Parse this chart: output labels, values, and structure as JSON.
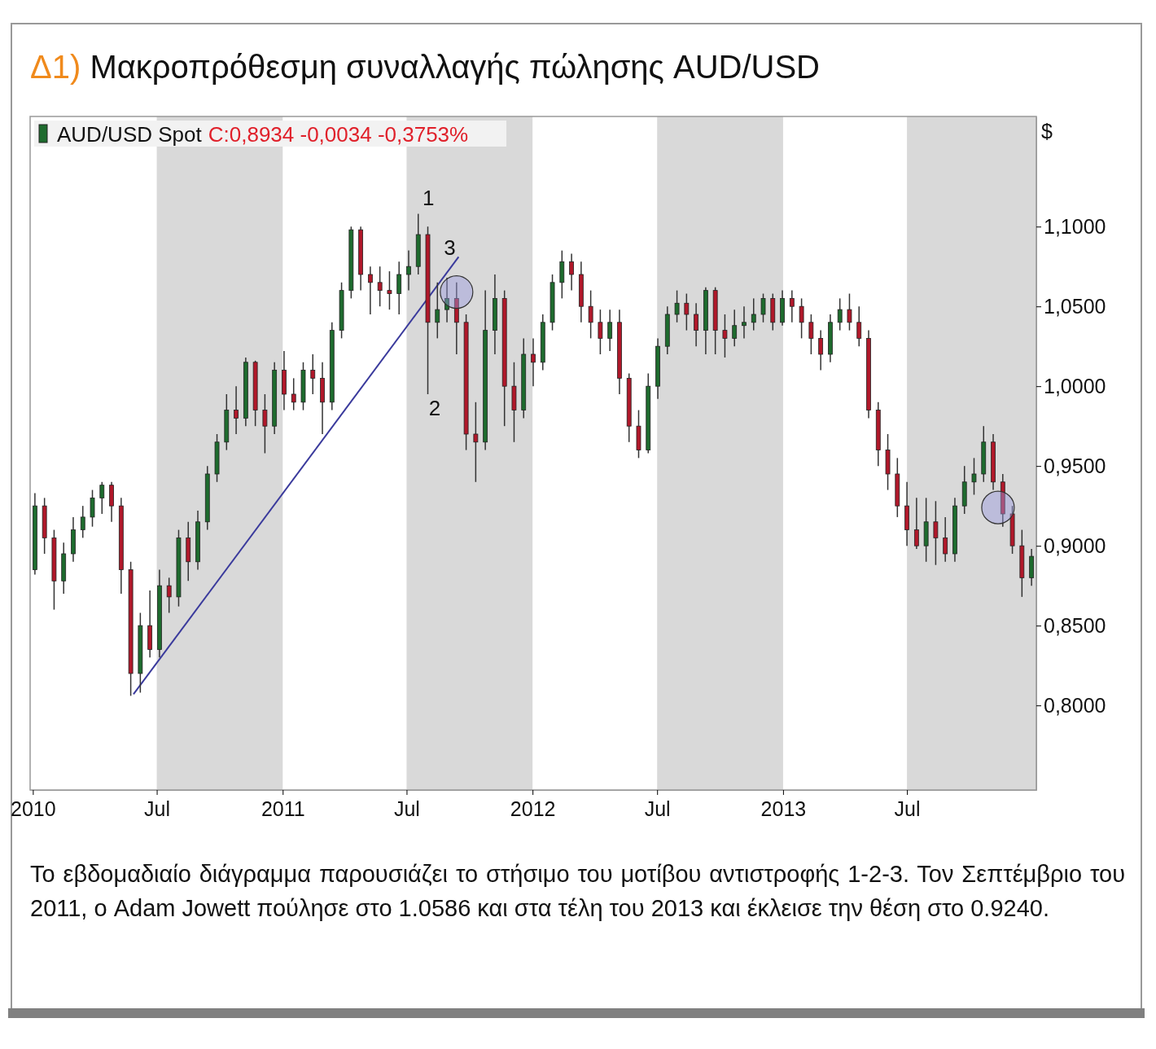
{
  "chart_data": {
    "type": "candlestick",
    "title": "Δ1) Μακροπρόθεσμη συναλλαγής πώλησης AUD/USD",
    "ylabel": "$",
    "x": [
      "2010-01-04",
      "2010-01-18",
      "2010-02-01",
      "2010-02-15",
      "2010-03-01",
      "2010-03-15",
      "2010-03-29",
      "2010-04-12",
      "2010-04-26",
      "2010-05-10",
      "2010-05-24",
      "2010-06-07",
      "2010-06-21",
      "2010-07-05",
      "2010-07-19",
      "2010-08-02",
      "2010-08-16",
      "2010-08-30",
      "2010-09-13",
      "2010-09-27",
      "2010-10-11",
      "2010-10-25",
      "2010-11-08",
      "2010-11-22",
      "2010-12-06",
      "2010-12-20",
      "2011-01-03",
      "2011-01-17",
      "2011-01-31",
      "2011-02-14",
      "2011-02-28",
      "2011-03-14",
      "2011-03-28",
      "2011-04-11",
      "2011-04-25",
      "2011-05-09",
      "2011-05-23",
      "2011-06-06",
      "2011-06-20",
      "2011-07-04",
      "2011-07-18",
      "2011-08-01",
      "2011-08-15",
      "2011-08-29",
      "2011-09-12",
      "2011-09-26",
      "2011-10-10",
      "2011-10-24",
      "2011-11-07",
      "2011-11-21",
      "2011-12-05",
      "2011-12-19",
      "2012-01-02",
      "2012-01-16",
      "2012-01-30",
      "2012-02-13",
      "2012-02-27",
      "2012-03-12",
      "2012-03-26",
      "2012-04-09",
      "2012-04-23",
      "2012-05-07",
      "2012-05-21",
      "2012-06-04",
      "2012-06-18",
      "2012-07-02",
      "2012-07-16",
      "2012-07-30",
      "2012-08-13",
      "2012-08-27",
      "2012-09-10",
      "2012-09-24",
      "2012-10-08",
      "2012-10-22",
      "2012-11-05",
      "2012-11-19",
      "2012-12-03",
      "2012-12-17",
      "2012-12-31",
      "2013-01-14",
      "2013-01-28",
      "2013-02-11",
      "2013-02-25",
      "2013-03-11",
      "2013-03-25",
      "2013-04-08",
      "2013-04-22",
      "2013-05-06",
      "2013-05-20",
      "2013-06-03",
      "2013-06-17",
      "2013-07-01",
      "2013-07-15",
      "2013-07-29",
      "2013-08-12",
      "2013-08-26",
      "2013-09-09",
      "2013-09-23",
      "2013-10-07",
      "2013-10-21",
      "2013-11-04",
      "2013-11-18",
      "2013-12-02",
      "2013-12-16",
      "2013-12-30"
    ],
    "series": [
      {
        "name": "AUD/USD Spot",
        "color": "#1e6b2e",
        "colors": [
          "#1e6b2e",
          "#b0182a",
          "#b0182a",
          "#1e6b2e",
          "#1e6b2e",
          "#1e6b2e",
          "#1e6b2e",
          "#1e6b2e",
          "#b0182a",
          "#b0182a",
          "#b0182a",
          "#1e6b2e",
          "#b0182a",
          "#1e6b2e",
          "#b0182a",
          "#1e6b2e",
          "#b0182a",
          "#1e6b2e",
          "#1e6b2e",
          "#1e6b2e",
          "#1e6b2e",
          "#b0182a",
          "#1e6b2e",
          "#b0182a",
          "#b0182a",
          "#1e6b2e",
          "#b0182a",
          "#b0182a",
          "#1e6b2e",
          "#b0182a",
          "#b0182a",
          "#1e6b2e",
          "#1e6b2e",
          "#1e6b2e",
          "#b0182a",
          "#b0182a",
          "#b0182a",
          "#b0182a",
          "#1e6b2e",
          "#1e6b2e",
          "#1e6b2e",
          "#b0182a",
          "#1e6b2e",
          "#1e6b2e",
          "#b0182a",
          "#b0182a",
          "#b0182a",
          "#1e6b2e",
          "#1e6b2e",
          "#b0182a",
          "#b0182a",
          "#1e6b2e",
          "#b0182a",
          "#1e6b2e",
          "#1e6b2e",
          "#1e6b2e",
          "#b0182a",
          "#b0182a",
          "#b0182a",
          "#b0182a",
          "#1e6b2e",
          "#b0182a",
          "#b0182a",
          "#b0182a",
          "#1e6b2e",
          "#1e6b2e",
          "#1e6b2e",
          "#1e6b2e",
          "#b0182a",
          "#b0182a",
          "#1e6b2e",
          "#b0182a",
          "#b0182a",
          "#1e6b2e",
          "#1e6b2e",
          "#1e6b2e",
          "#1e6b2e",
          "#b0182a",
          "#1e6b2e",
          "#b0182a",
          "#b0182a",
          "#b0182a",
          "#b0182a",
          "#1e6b2e",
          "#1e6b2e",
          "#b0182a",
          "#b0182a",
          "#b0182a",
          "#b0182a",
          "#b0182a",
          "#b0182a",
          "#b0182a",
          "#b0182a",
          "#1e6b2e",
          "#b0182a",
          "#b0182a",
          "#1e6b2e",
          "#1e6b2e",
          "#1e6b2e",
          "#1e6b2e",
          "#b0182a",
          "#b0182a",
          "#b0182a",
          "#b0182a",
          "#1e6b2e"
        ],
        "ohlc": [
          [
            0.885,
            0.933,
            0.882,
            0.925
          ],
          [
            0.925,
            0.93,
            0.895,
            0.905
          ],
          [
            0.905,
            0.91,
            0.86,
            0.878
          ],
          [
            0.878,
            0.902,
            0.87,
            0.895
          ],
          [
            0.895,
            0.918,
            0.89,
            0.91
          ],
          [
            0.91,
            0.925,
            0.905,
            0.918
          ],
          [
            0.918,
            0.935,
            0.912,
            0.93
          ],
          [
            0.93,
            0.94,
            0.92,
            0.938
          ],
          [
            0.938,
            0.94,
            0.915,
            0.925
          ],
          [
            0.925,
            0.93,
            0.87,
            0.885
          ],
          [
            0.885,
            0.89,
            0.806,
            0.82
          ],
          [
            0.82,
            0.858,
            0.808,
            0.85
          ],
          [
            0.85,
            0.872,
            0.83,
            0.835
          ],
          [
            0.835,
            0.885,
            0.83,
            0.875
          ],
          [
            0.875,
            0.88,
            0.858,
            0.868
          ],
          [
            0.868,
            0.91,
            0.862,
            0.905
          ],
          [
            0.905,
            0.915,
            0.878,
            0.89
          ],
          [
            0.89,
            0.922,
            0.885,
            0.915
          ],
          [
            0.915,
            0.95,
            0.91,
            0.945
          ],
          [
            0.945,
            0.97,
            0.94,
            0.965
          ],
          [
            0.965,
            0.995,
            0.96,
            0.985
          ],
          [
            0.985,
            1.0,
            0.97,
            0.98
          ],
          [
            0.98,
            1.018,
            0.975,
            1.015
          ],
          [
            1.015,
            1.016,
            0.975,
            0.985
          ],
          [
            0.985,
            0.995,
            0.958,
            0.975
          ],
          [
            0.975,
            1.015,
            0.97,
            1.01
          ],
          [
            1.01,
            1.022,
            0.985,
            0.995
          ],
          [
            0.995,
            1.005,
            0.985,
            0.99
          ],
          [
            0.99,
            1.015,
            0.985,
            1.01
          ],
          [
            1.01,
            1.02,
            0.995,
            1.005
          ],
          [
            1.005,
            1.015,
            0.97,
            0.99
          ],
          [
            0.99,
            1.04,
            0.985,
            1.035
          ],
          [
            1.035,
            1.065,
            1.03,
            1.06
          ],
          [
            1.06,
            1.1,
            1.055,
            1.098
          ],
          [
            1.098,
            1.1,
            1.06,
            1.07
          ],
          [
            1.07,
            1.075,
            1.045,
            1.065
          ],
          [
            1.065,
            1.075,
            1.05,
            1.06
          ],
          [
            1.06,
            1.072,
            1.048,
            1.058
          ],
          [
            1.058,
            1.078,
            1.045,
            1.07
          ],
          [
            1.07,
            1.085,
            1.06,
            1.075
          ],
          [
            1.075,
            1.108,
            1.07,
            1.095
          ],
          [
            1.095,
            1.1,
            0.995,
            1.04
          ],
          [
            1.04,
            1.065,
            1.03,
            1.048
          ],
          [
            1.048,
            1.068,
            1.04,
            1.055
          ],
          [
            1.055,
            1.065,
            1.02,
            1.04
          ],
          [
            1.04,
            1.045,
            0.96,
            0.97
          ],
          [
            0.97,
            0.99,
            0.94,
            0.965
          ],
          [
            0.965,
            1.06,
            0.96,
            1.035
          ],
          [
            1.035,
            1.07,
            1.02,
            1.055
          ],
          [
            1.055,
            1.06,
            0.975,
            1.0
          ],
          [
            1.0,
            1.015,
            0.965,
            0.985
          ],
          [
            0.985,
            1.03,
            0.98,
            1.02
          ],
          [
            1.02,
            1.03,
            1.0,
            1.015
          ],
          [
            1.015,
            1.045,
            1.01,
            1.04
          ],
          [
            1.04,
            1.07,
            1.035,
            1.065
          ],
          [
            1.065,
            1.085,
            1.055,
            1.078
          ],
          [
            1.078,
            1.083,
            1.06,
            1.07
          ],
          [
            1.07,
            1.078,
            1.04,
            1.05
          ],
          [
            1.05,
            1.06,
            1.03,
            1.04
          ],
          [
            1.04,
            1.048,
            1.02,
            1.03
          ],
          [
            1.03,
            1.048,
            1.022,
            1.04
          ],
          [
            1.04,
            1.048,
            0.995,
            1.005
          ],
          [
            1.005,
            1.008,
            0.965,
            0.975
          ],
          [
            0.975,
            0.985,
            0.955,
            0.96
          ],
          [
            0.96,
            1.008,
            0.958,
            1.0
          ],
          [
            1.0,
            1.03,
            0.992,
            1.025
          ],
          [
            1.025,
            1.05,
            1.02,
            1.045
          ],
          [
            1.045,
            1.06,
            1.04,
            1.052
          ],
          [
            1.052,
            1.058,
            1.035,
            1.045
          ],
          [
            1.045,
            1.052,
            1.025,
            1.035
          ],
          [
            1.035,
            1.062,
            1.02,
            1.06
          ],
          [
            1.06,
            1.062,
            1.02,
            1.035
          ],
          [
            1.035,
            1.045,
            1.018,
            1.03
          ],
          [
            1.03,
            1.048,
            1.025,
            1.038
          ],
          [
            1.038,
            1.05,
            1.03,
            1.04
          ],
          [
            1.04,
            1.055,
            1.035,
            1.045
          ],
          [
            1.045,
            1.058,
            1.04,
            1.055
          ],
          [
            1.055,
            1.058,
            1.035,
            1.04
          ],
          [
            1.04,
            1.06,
            1.038,
            1.055
          ],
          [
            1.055,
            1.06,
            1.04,
            1.05
          ],
          [
            1.05,
            1.055,
            1.03,
            1.04
          ],
          [
            1.04,
            1.045,
            1.02,
            1.03
          ],
          [
            1.03,
            1.035,
            1.01,
            1.02
          ],
          [
            1.02,
            1.045,
            1.015,
            1.04
          ],
          [
            1.04,
            1.055,
            1.035,
            1.048
          ],
          [
            1.048,
            1.058,
            1.035,
            1.04
          ],
          [
            1.04,
            1.05,
            1.025,
            1.03
          ],
          [
            1.03,
            1.035,
            0.98,
            0.985
          ],
          [
            0.985,
            0.99,
            0.95,
            0.96
          ],
          [
            0.96,
            0.97,
            0.935,
            0.945
          ],
          [
            0.945,
            0.955,
            0.918,
            0.925
          ],
          [
            0.925,
            0.94,
            0.9,
            0.91
          ],
          [
            0.91,
            0.93,
            0.898,
            0.9
          ],
          [
            0.9,
            0.93,
            0.89,
            0.915
          ],
          [
            0.915,
            0.928,
            0.888,
            0.905
          ],
          [
            0.905,
            0.918,
            0.89,
            0.895
          ],
          [
            0.895,
            0.93,
            0.89,
            0.925
          ],
          [
            0.925,
            0.95,
            0.92,
            0.94
          ],
          [
            0.94,
            0.955,
            0.932,
            0.945
          ],
          [
            0.945,
            0.975,
            0.94,
            0.965
          ],
          [
            0.965,
            0.97,
            0.935,
            0.94
          ],
          [
            0.94,
            0.945,
            0.912,
            0.92
          ],
          [
            0.92,
            0.925,
            0.895,
            0.9
          ],
          [
            0.9,
            0.91,
            0.868,
            0.88
          ],
          [
            0.88,
            0.898,
            0.875,
            0.8934
          ]
        ]
      },
      {
        "type": "line",
        "x": [
          "2010-05-28",
          "2011-09-15"
        ],
        "values": [
          0.807,
          1.081
        ],
        "color": "#3a3a9c"
      }
    ],
    "xlim": [
      "2009-12-28",
      "2014-01-06"
    ],
    "xticks": [
      {
        "value": "2010-01-01",
        "label": "2010"
      },
      {
        "value": "2010-07-01",
        "label": "Jul"
      },
      {
        "value": "2011-01-01",
        "label": "2011"
      },
      {
        "value": "2011-07-01",
        "label": "Jul"
      },
      {
        "value": "2012-01-01",
        "label": "2012"
      },
      {
        "value": "2012-07-01",
        "label": "Jul"
      },
      {
        "value": "2013-01-01",
        "label": "2013"
      },
      {
        "value": "2013-07-01",
        "label": "Jul"
      }
    ],
    "ylim": [
      0.747,
      1.169
    ],
    "yticks": [
      {
        "value": 0.8,
        "label": "0,8000"
      },
      {
        "value": 0.85,
        "label": "0,8500"
      },
      {
        "value": 0.9,
        "label": "0,9000"
      },
      {
        "value": 0.95,
        "label": "0,9500"
      },
      {
        "value": 1.0,
        "label": "1,0000"
      },
      {
        "value": 1.05,
        "label": "1,0500"
      },
      {
        "value": 1.1,
        "label": "1,1000"
      }
    ],
    "bands": [
      {
        "axis": "x",
        "from": "2010-07-01",
        "to": "2011-01-01",
        "color": "#d9d9d9"
      },
      {
        "axis": "x",
        "from": "2011-07-01",
        "to": "2012-01-01",
        "color": "#d9d9d9"
      },
      {
        "axis": "x",
        "from": "2012-07-01",
        "to": "2013-01-01",
        "color": "#d9d9d9"
      },
      {
        "axis": "x",
        "from": "2013-07-01",
        "to": "2014-01-06",
        "color": "#d9d9d9"
      }
    ],
    "annotations": [
      "C:0,8934 -0,0034 -0,3753%",
      "1",
      "2",
      "3",
      "Το εβδομαδιαίο διάγραμμα παρουσιάζει το στήσιμο του μοτίβου αντιστροφής 1-2-3. Τον Σεπτέμβριο του 2011, ο Adam Jowett πούλησε στο 1.0586 και στα τέλη του 2013 και έκλεισε την θέση στο 0.9240."
    ],
    "legend": "top left",
    "grid": false
  }
}
